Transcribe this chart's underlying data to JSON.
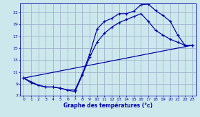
{
  "xlabel": "Graphe des températures (°c)",
  "bg_color": "#cce8ec",
  "grid_color": "#99aacc",
  "line_color": "#0000aa",
  "ylim": [
    7,
    22.5
  ],
  "xlim": [
    -0.5,
    23.5
  ],
  "yticks": [
    7,
    9,
    11,
    13,
    15,
    17,
    19,
    21
  ],
  "xticks": [
    0,
    1,
    2,
    3,
    4,
    5,
    6,
    7,
    8,
    9,
    10,
    11,
    12,
    13,
    14,
    15,
    16,
    17,
    18,
    19,
    20,
    21,
    22,
    23
  ],
  "curve1_x": [
    0,
    1,
    2,
    3,
    4,
    5,
    6,
    7,
    8,
    9,
    10,
    11,
    12,
    13,
    14,
    15,
    16,
    17,
    18,
    19,
    20,
    21,
    22,
    23
  ],
  "curve1_y": [
    10.0,
    9.2,
    8.8,
    8.5,
    8.5,
    8.3,
    8.0,
    8.0,
    10.7,
    14.0,
    18.2,
    19.5,
    20.0,
    20.8,
    20.8,
    21.2,
    22.3,
    22.4,
    21.3,
    20.5,
    19.5,
    17.2,
    15.5,
    15.5
  ],
  "curve2_x": [
    0,
    2,
    3,
    4,
    5,
    6,
    7,
    8,
    9,
    10,
    11,
    12,
    13,
    14,
    15,
    16,
    17,
    18,
    19,
    20,
    21,
    22,
    23
  ],
  "curve2_y": [
    10.0,
    8.8,
    8.5,
    8.5,
    8.3,
    8.0,
    7.7,
    10.5,
    13.5,
    16.0,
    17.5,
    18.5,
    19.3,
    19.8,
    20.3,
    20.8,
    19.5,
    18.0,
    17.2,
    16.5,
    16.0,
    15.5,
    15.5
  ],
  "curve3_x": [
    0,
    23
  ],
  "curve3_y": [
    10.0,
    15.5
  ]
}
